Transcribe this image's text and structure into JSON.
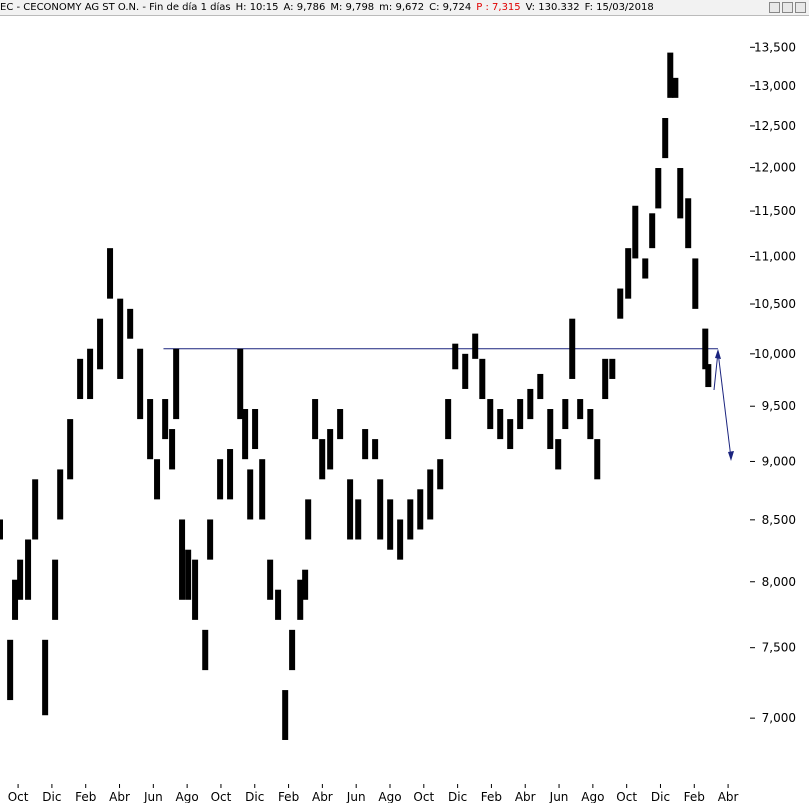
{
  "header": {
    "parts": [
      {
        "text": "EC - CECONOMY AG  ST O.N. - Fin de día 1 días"
      },
      {
        "text": "H: 10:15"
      },
      {
        "text": "A: 9,786"
      },
      {
        "text": "M: 9,798"
      },
      {
        "text": "m: 9,672"
      },
      {
        "text": "C: 9,724"
      },
      {
        "text": "P : 7,315",
        "color": "#e00000"
      },
      {
        "text": "V: 130.332"
      },
      {
        "text": "F: 15/03/2018"
      }
    ]
  },
  "chart_data": {
    "type": "ohlc",
    "log": true,
    "color": "#000000",
    "xlim": [
      -1.07,
      43
    ],
    "xticks": [
      {
        "value": 0,
        "label": "Oct"
      },
      {
        "value": 2,
        "label": "Dic"
      },
      {
        "value": 4,
        "label": "Feb"
      },
      {
        "value": 6,
        "label": "Abr"
      },
      {
        "value": 8,
        "label": "Jun"
      },
      {
        "value": 10,
        "label": "Ago"
      },
      {
        "value": 12,
        "label": "Oct"
      },
      {
        "value": 14,
        "label": "Dic"
      },
      {
        "value": 16,
        "label": "Feb"
      },
      {
        "value": 18,
        "label": "Abr"
      },
      {
        "value": 20,
        "label": "Jun"
      },
      {
        "value": 22,
        "label": "Ago"
      },
      {
        "value": 24,
        "label": "Oct"
      },
      {
        "value": 26,
        "label": "Dic"
      },
      {
        "value": 28,
        "label": "Feb"
      },
      {
        "value": 30,
        "label": "Abr"
      },
      {
        "value": 32,
        "label": "Jun"
      },
      {
        "value": 34,
        "label": "Ago"
      },
      {
        "value": 36,
        "label": "Oct"
      },
      {
        "value": 38,
        "label": "Dic"
      },
      {
        "value": 40,
        "label": "Feb"
      },
      {
        "value": 42,
        "label": "Abr"
      }
    ],
    "ylim": [
      6442,
      13920
    ],
    "yticks": [
      {
        "value": 7000,
        "label": "7,000"
      },
      {
        "value": 7500,
        "label": "7,500"
      },
      {
        "value": 8000,
        "label": "8,000"
      },
      {
        "value": 8500,
        "label": "8,500"
      },
      {
        "value": 9000,
        "label": "9,000"
      },
      {
        "value": 9500,
        "label": "9,500"
      },
      {
        "value": 10000,
        "label": "10,000"
      },
      {
        "value": 10500,
        "label": "10,500"
      },
      {
        "value": 11000,
        "label": "11,000"
      },
      {
        "value": 11500,
        "label": "11,500"
      },
      {
        "value": 12000,
        "label": "12,000"
      },
      {
        "value": 12500,
        "label": "12,500"
      },
      {
        "value": 13000,
        "label": "13,000"
      },
      {
        "value": 13500,
        "label": "13,500"
      }
    ],
    "x": [
      -1.07,
      -0.47,
      -0.18,
      0.12,
      0.59,
      1.01,
      1.6,
      2.19,
      2.49,
      3.08,
      3.67,
      4.26,
      4.85,
      5.44,
      6.04,
      6.63,
      7.22,
      7.81,
      8.22,
      8.7,
      9.11,
      9.35,
      9.7,
      10.06,
      10.47,
      11.07,
      11.36,
      11.95,
      12.54,
      13.14,
      13.43,
      13.73,
      14.02,
      14.44,
      14.91,
      15.38,
      15.8,
      16.21,
      16.69,
      16.98,
      17.16,
      17.57,
      17.99,
      18.46,
      19.05,
      19.64,
      20.12,
      20.53,
      21.12,
      21.42,
      22.01,
      22.6,
      23.2,
      23.79,
      24.38,
      24.97,
      25.44,
      25.86,
      26.45,
      27.04,
      27.46,
      27.93,
      28.52,
      29.11,
      29.7,
      30.3,
      30.89,
      31.48,
      31.95,
      32.37,
      32.78,
      33.25,
      33.85,
      34.26,
      34.73,
      35.15,
      35.62,
      36.09,
      36.51,
      37.1,
      37.51,
      37.87,
      38.28,
      38.58,
      38.88,
      39.17,
      39.64,
      40.06,
      40.65,
      40.83
    ],
    "high": [
      8503,
      7558,
      8016,
      8175,
      8338,
      8844,
      7558,
      8175,
      8930,
      9381,
      9951,
      10050,
      10350,
      11090,
      10555,
      10450,
      10050,
      9567,
      9020,
      9567,
      9290,
      10050,
      8503,
      8255,
      8175,
      7632,
      8503,
      9020,
      9110,
      10050,
      9474,
      8930,
      9474,
      9020,
      8175,
      7938,
      7195,
      7632,
      8016,
      8095,
      8672,
      9567,
      9199,
      9290,
      9474,
      8844,
      8672,
      9290,
      9199,
      8844,
      8672,
      8503,
      8672,
      8758,
      8930,
      9020,
      9567,
      10100,
      10000,
      10200,
      9951,
      9567,
      9474,
      9381,
      9567,
      9662,
      9805,
      9474,
      9199,
      9567,
      10350,
      9567,
      9474,
      9199,
      9951,
      9951,
      10660,
      11090,
      11560,
      10979,
      11475,
      11995,
      12597,
      13430,
      13102,
      11995,
      11645,
      10979,
      10250,
      9900
    ],
    "low": [
      8338,
      7125,
      7707,
      7860,
      7860,
      8338,
      7020,
      7707,
      8503,
      8844,
      9567,
      9567,
      9850,
      10555,
      9757,
      10149,
      9381,
      9020,
      8672,
      9199,
      8930,
      9381,
      7860,
      7860,
      7707,
      7337,
      8175,
      8672,
      8672,
      9381,
      9020,
      8503,
      9110,
      8503,
      7860,
      7707,
      6852,
      7337,
      7707,
      7860,
      8338,
      9199,
      8844,
      8930,
      9199,
      8338,
      8338,
      9020,
      9020,
      8338,
      8255,
      8175,
      8338,
      8420,
      8503,
      8758,
      9199,
      9850,
      9662,
      9951,
      9567,
      9290,
      9199,
      9110,
      9290,
      9381,
      9567,
      9110,
      8930,
      9290,
      9757,
      9381,
      9199,
      8844,
      9567,
      9757,
      10350,
      10555,
      10979,
      10765,
      11090,
      11530,
      12112,
      12848,
      12848,
      11418,
      11090,
      10450,
      9850,
      9680
    ],
    "level": {
      "value": 10050,
      "x": [
        8.6,
        41.4
      ],
      "color": "#1a237e"
    }
  }
}
